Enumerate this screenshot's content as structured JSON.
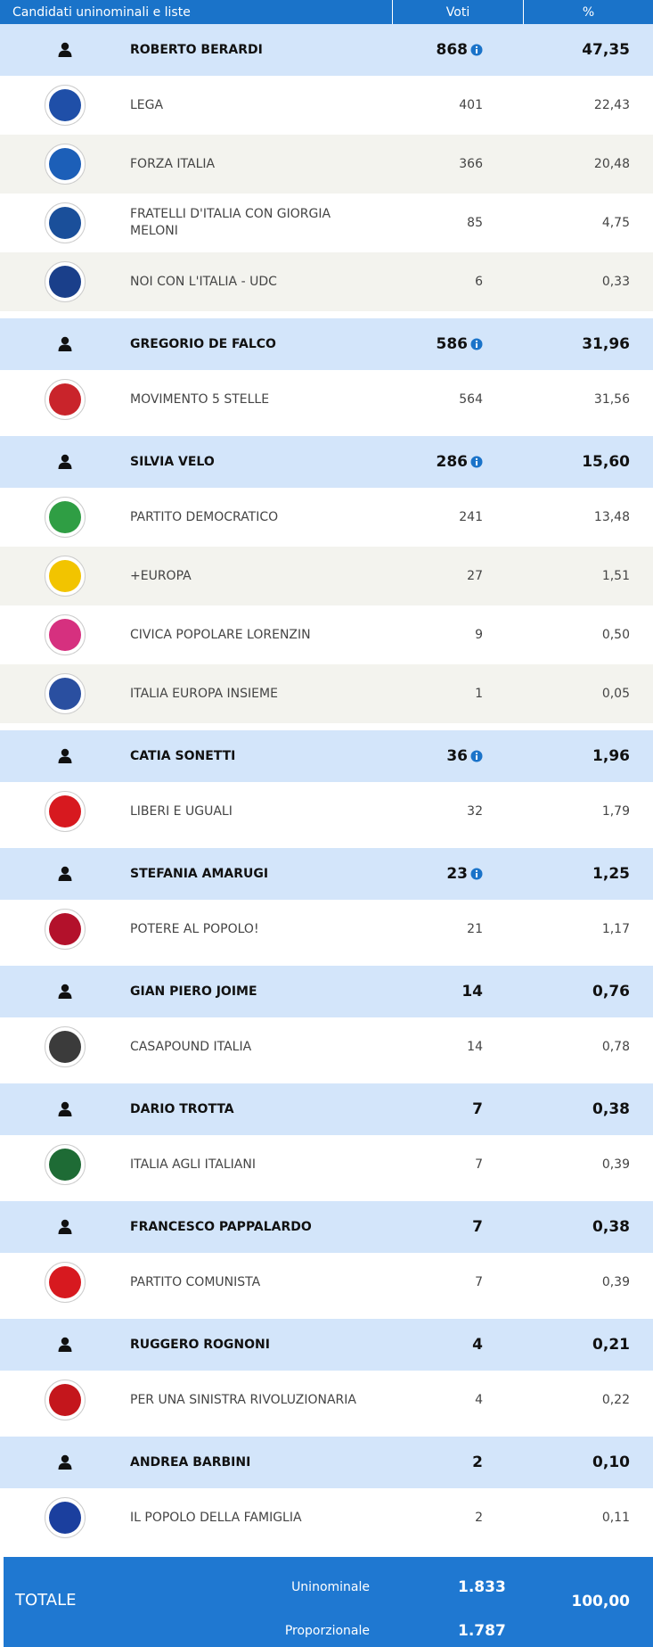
{
  "header": {
    "columns": [
      "Candidati uninominali e liste",
      "Voti",
      "%"
    ]
  },
  "groups": [
    {
      "candidate": {
        "name": "ROBERTO BERARDI",
        "votes": "868",
        "percent": "47,35",
        "info": true
      },
      "lists": [
        {
          "name": "LEGA",
          "votes": "401",
          "percent": "22,43",
          "logo_color": "#1f4fa8"
        },
        {
          "name": "FORZA ITALIA",
          "votes": "366",
          "percent": "20,48",
          "logo_color": "#1c5fb8"
        },
        {
          "name": "FRATELLI D'ITALIA CON GIORGIA MELONI",
          "votes": "85",
          "percent": "4,75",
          "logo_color": "#1a4f9a"
        },
        {
          "name": "NOI CON L'ITALIA - UDC",
          "votes": "6",
          "percent": "0,33",
          "logo_color": "#1a3f8a"
        }
      ]
    },
    {
      "candidate": {
        "name": "GREGORIO DE FALCO",
        "votes": "586",
        "percent": "31,96",
        "info": true
      },
      "lists": [
        {
          "name": "MOVIMENTO 5 STELLE",
          "votes": "564",
          "percent": "31,56",
          "logo_color": "#c9242b"
        }
      ]
    },
    {
      "candidate": {
        "name": "SILVIA VELO",
        "votes": "286",
        "percent": "15,60",
        "info": true
      },
      "lists": [
        {
          "name": "PARTITO DEMOCRATICO",
          "votes": "241",
          "percent": "13,48",
          "logo_color": "#2f9e44"
        },
        {
          "name": "+EUROPA",
          "votes": "27",
          "percent": "1,51",
          "logo_color": "#f2c400"
        },
        {
          "name": "CIVICA POPOLARE LORENZIN",
          "votes": "9",
          "percent": "0,50",
          "logo_color": "#d6307f"
        },
        {
          "name": "ITALIA EUROPA INSIEME",
          "votes": "1",
          "percent": "0,05",
          "logo_color": "#2a4fa0"
        }
      ]
    },
    {
      "candidate": {
        "name": "CATIA SONETTI",
        "votes": "36",
        "percent": "1,96",
        "info": true
      },
      "lists": [
        {
          "name": "LIBERI E UGUALI",
          "votes": "32",
          "percent": "1,79",
          "logo_color": "#d7191f"
        }
      ]
    },
    {
      "candidate": {
        "name": "STEFANIA AMARUGI",
        "votes": "23",
        "percent": "1,25",
        "info": true
      },
      "lists": [
        {
          "name": "POTERE AL POPOLO!",
          "votes": "21",
          "percent": "1,17",
          "logo_color": "#b3112b"
        }
      ]
    },
    {
      "candidate": {
        "name": "GIAN PIERO JOIME",
        "votes": "14",
        "percent": "0,76",
        "info": false
      },
      "lists": [
        {
          "name": "CASAPOUND ITALIA",
          "votes": "14",
          "percent": "0,78",
          "logo_color": "#3b3b3b"
        }
      ]
    },
    {
      "candidate": {
        "name": "DARIO TROTTA",
        "votes": "7",
        "percent": "0,38",
        "info": false
      },
      "lists": [
        {
          "name": "ITALIA AGLI ITALIANI",
          "votes": "7",
          "percent": "0,39",
          "logo_color": "#1e6b35"
        }
      ]
    },
    {
      "candidate": {
        "name": "FRANCESCO PAPPALARDO",
        "votes": "7",
        "percent": "0,38",
        "info": false
      },
      "lists": [
        {
          "name": "PARTITO COMUNISTA",
          "votes": "7",
          "percent": "0,39",
          "logo_color": "#d7191f"
        }
      ]
    },
    {
      "candidate": {
        "name": "RUGGERO ROGNONI",
        "votes": "4",
        "percent": "0,21",
        "info": false
      },
      "lists": [
        {
          "name": "PER UNA SINISTRA RIVOLUZIONARIA",
          "votes": "4",
          "percent": "0,22",
          "logo_color": "#c4161c"
        }
      ]
    },
    {
      "candidate": {
        "name": "ANDREA BARBINI",
        "votes": "2",
        "percent": "0,10",
        "info": false
      },
      "lists": [
        {
          "name": "IL POPOLO DELLA FAMIGLIA",
          "votes": "2",
          "percent": "0,11",
          "logo_color": "#1b3f9e"
        }
      ]
    }
  ],
  "total": {
    "label": "TOTALE",
    "rows": [
      {
        "label": "Uninominale",
        "votes": "1.833"
      },
      {
        "label": "Proporzionale",
        "votes": "1.787"
      }
    ],
    "percent": "100,00"
  }
}
